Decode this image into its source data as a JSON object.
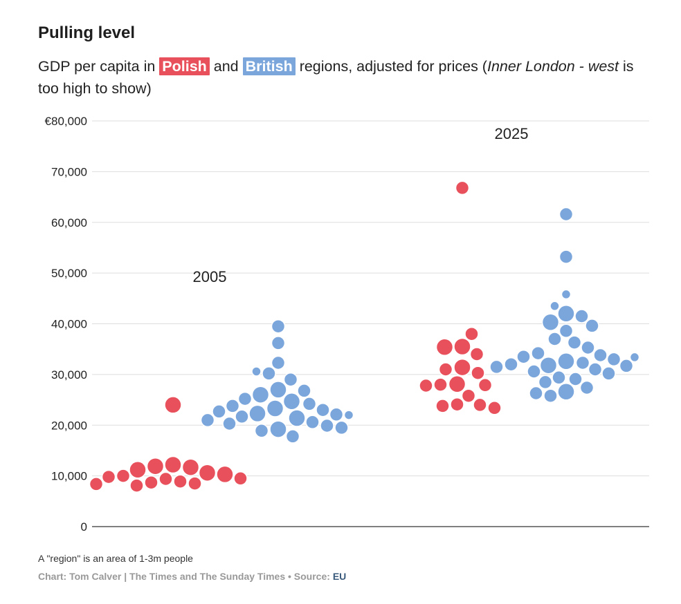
{
  "title": "Pulling level",
  "subtitle": {
    "part1": "GDP per capita in ",
    "polish": "Polish",
    "part2": " and ",
    "british": "British",
    "part3": " regions, adjusted for prices (",
    "italic1": "Inner London -",
    "part4": " ",
    "italic2": "west",
    "part5": " is too high to show)"
  },
  "colors": {
    "polish": "#e8505b",
    "british": "#7ba6dc",
    "grid": "#dddddd",
    "axis": "#333333"
  },
  "chart_data": {
    "type": "scatter",
    "subtype": "beeswarm",
    "y_label_prefix": "€",
    "ylim": [
      0,
      80000
    ],
    "y_ticks": [
      0,
      10000,
      20000,
      30000,
      40000,
      50000,
      60000,
      70000,
      80000
    ],
    "y_tick_labels": [
      "0",
      "10,000",
      "20,000",
      "30,000",
      "40,000",
      "50,000",
      "60,000",
      "70,000",
      "€80,000"
    ],
    "groups": [
      {
        "year_label": "2005",
        "series": [
          {
            "name": "Polish",
            "color": "#e8505b",
            "points": [
              {
                "v": 24000,
                "s": 3
              },
              {
                "v": 12200,
                "s": 3
              },
              {
                "v": 11900,
                "s": 3
              },
              {
                "v": 11700,
                "s": 3
              },
              {
                "v": 11200,
                "s": 3
              },
              {
                "v": 10600,
                "s": 3
              },
              {
                "v": 10300,
                "s": 3
              },
              {
                "v": 10000,
                "s": 2
              },
              {
                "v": 9800,
                "s": 2
              },
              {
                "v": 9500,
                "s": 2
              },
              {
                "v": 9400,
                "s": 2
              },
              {
                "v": 8900,
                "s": 2
              },
              {
                "v": 8700,
                "s": 2
              },
              {
                "v": 8500,
                "s": 2
              },
              {
                "v": 8400,
                "s": 2
              },
              {
                "v": 8100,
                "s": 2
              }
            ]
          },
          {
            "name": "British",
            "color": "#7ba6dc",
            "points": [
              {
                "v": 39500,
                "s": 2
              },
              {
                "v": 36200,
                "s": 2
              },
              {
                "v": 32300,
                "s": 2
              },
              {
                "v": 30200,
                "s": 2
              },
              {
                "v": 30600,
                "s": 1
              },
              {
                "v": 29000,
                "s": 2
              },
              {
                "v": 27000,
                "s": 3
              },
              {
                "v": 26800,
                "s": 2
              },
              {
                "v": 26000,
                "s": 3
              },
              {
                "v": 25200,
                "s": 2
              },
              {
                "v": 24700,
                "s": 3
              },
              {
                "v": 24200,
                "s": 2
              },
              {
                "v": 23800,
                "s": 2
              },
              {
                "v": 23300,
                "s": 3
              },
              {
                "v": 23000,
                "s": 2
              },
              {
                "v": 22700,
                "s": 2
              },
              {
                "v": 22300,
                "s": 3
              },
              {
                "v": 22100,
                "s": 2
              },
              {
                "v": 22000,
                "s": 1
              },
              {
                "v": 21700,
                "s": 2
              },
              {
                "v": 21400,
                "s": 3
              },
              {
                "v": 21000,
                "s": 2
              },
              {
                "v": 20600,
                "s": 2
              },
              {
                "v": 20300,
                "s": 2
              },
              {
                "v": 19900,
                "s": 2
              },
              {
                "v": 19500,
                "s": 2
              },
              {
                "v": 19200,
                "s": 3
              },
              {
                "v": 18900,
                "s": 2
              },
              {
                "v": 17800,
                "s": 2
              }
            ]
          }
        ]
      },
      {
        "year_label": "2025",
        "series": [
          {
            "name": "Polish",
            "color": "#e8505b",
            "points": [
              {
                "v": 66800,
                "s": 2
              },
              {
                "v": 38000,
                "s": 2
              },
              {
                "v": 35500,
                "s": 3
              },
              {
                "v": 35400,
                "s": 3
              },
              {
                "v": 34000,
                "s": 2
              },
              {
                "v": 31400,
                "s": 3
              },
              {
                "v": 31000,
                "s": 2
              },
              {
                "v": 30300,
                "s": 2
              },
              {
                "v": 28100,
                "s": 3
              },
              {
                "v": 28000,
                "s": 2
              },
              {
                "v": 27900,
                "s": 2
              },
              {
                "v": 27800,
                "s": 2
              },
              {
                "v": 25800,
                "s": 2
              },
              {
                "v": 24100,
                "s": 2
              },
              {
                "v": 24000,
                "s": 2
              },
              {
                "v": 23800,
                "s": 2
              },
              {
                "v": 23400,
                "s": 2
              }
            ]
          },
          {
            "name": "British",
            "color": "#7ba6dc",
            "points": [
              {
                "v": 61600,
                "s": 2
              },
              {
                "v": 53200,
                "s": 2
              },
              {
                "v": 45800,
                "s": 1
              },
              {
                "v": 43500,
                "s": 1
              },
              {
                "v": 42000,
                "s": 3
              },
              {
                "v": 41500,
                "s": 2
              },
              {
                "v": 40300,
                "s": 3
              },
              {
                "v": 39600,
                "s": 2
              },
              {
                "v": 38600,
                "s": 2
              },
              {
                "v": 37000,
                "s": 2
              },
              {
                "v": 36300,
                "s": 2
              },
              {
                "v": 35300,
                "s": 2
              },
              {
                "v": 34200,
                "s": 2
              },
              {
                "v": 33800,
                "s": 2
              },
              {
                "v": 33500,
                "s": 2
              },
              {
                "v": 33400,
                "s": 1
              },
              {
                "v": 33000,
                "s": 2
              },
              {
                "v": 32600,
                "s": 3
              },
              {
                "v": 32300,
                "s": 2
              },
              {
                "v": 32000,
                "s": 2
              },
              {
                "v": 31800,
                "s": 3
              },
              {
                "v": 31700,
                "s": 2
              },
              {
                "v": 31500,
                "s": 2
              },
              {
                "v": 31000,
                "s": 2
              },
              {
                "v": 30600,
                "s": 2
              },
              {
                "v": 30200,
                "s": 2
              },
              {
                "v": 29400,
                "s": 2
              },
              {
                "v": 29100,
                "s": 2
              },
              {
                "v": 28500,
                "s": 2
              },
              {
                "v": 27400,
                "s": 2
              },
              {
                "v": 26600,
                "s": 3
              },
              {
                "v": 26300,
                "s": 2
              },
              {
                "v": 25800,
                "s": 2
              }
            ]
          }
        ]
      }
    ]
  },
  "note": "A \"region\" is an area of 1-3m people",
  "credit": {
    "text": "Chart: Tom Calver | The Times and The Sunday Times • Source: ",
    "source": "EU"
  }
}
